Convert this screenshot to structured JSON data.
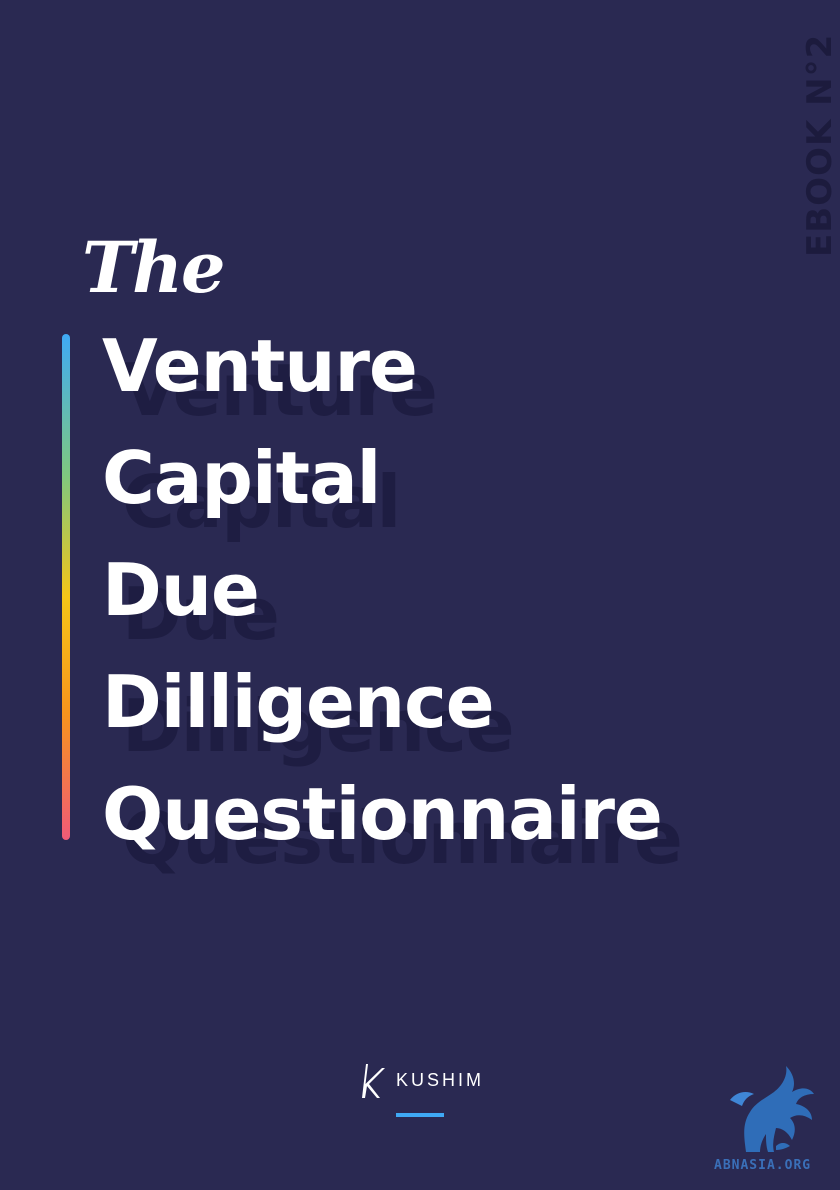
{
  "cover": {
    "ebook_label": "EBOOK N°2",
    "the": "The",
    "title_lines": [
      "Venture",
      "Capital",
      "Due",
      "Dilligence",
      "Questionnaire"
    ],
    "publisher": "KUSHIM",
    "watermark": "ABNASIA.ORG"
  },
  "colors": {
    "background": "#2a2952",
    "accent_blue": "#3fa9f5",
    "gradient": [
      "#3fa9f5",
      "#7fc97f",
      "#f5c518",
      "#f7941d",
      "#f05a78"
    ]
  },
  "icons": {
    "logo": "kushim-k-logo-icon",
    "watermark": "griffin-logo-icon"
  }
}
